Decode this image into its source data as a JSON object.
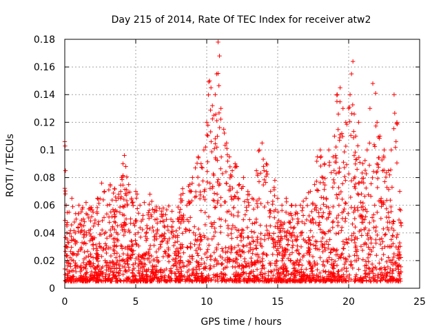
{
  "chart_data": {
    "type": "scatter",
    "title": "Day 215 of 2014, Rate Of TEC Index for receiver atw2",
    "xlabel": "GPS time / hours",
    "ylabel": "ROTI / TECUs",
    "xlim": [
      0,
      25
    ],
    "ylim": [
      0,
      0.18
    ],
    "xticks": [
      0,
      5,
      10,
      15,
      20,
      25
    ],
    "yticks": [
      0,
      0.02,
      0.04,
      0.06,
      0.08,
      0.1,
      0.12,
      0.14,
      0.16,
      0.18
    ],
    "ytick_labels": [
      "0",
      "0.02",
      "0.04",
      "0.06",
      "0.08",
      "0.1",
      "0.12",
      "0.14",
      "0.16",
      "0.18"
    ],
    "grid": true,
    "marker": "+",
    "color": "#ff0000",
    "series": [
      {
        "name": "ROTI",
        "x": [
          0.0,
          0.05,
          0.1,
          0.1,
          0.15,
          0.2,
          0.3,
          0.5,
          0.8,
          1.0,
          1.2,
          1.5,
          1.8,
          2.0,
          2.3,
          2.6,
          2.8,
          3.0,
          3.2,
          3.5,
          3.8,
          4.0,
          4.1,
          4.2,
          4.3,
          4.5,
          4.7,
          5.0,
          5.3,
          5.6,
          6.0,
          6.3,
          6.5,
          6.8,
          7.0,
          7.5,
          8.0,
          8.3,
          8.6,
          8.8,
          9.0,
          9.2,
          9.4,
          9.6,
          9.8,
          10.0,
          10.2,
          10.3,
          10.4,
          10.5,
          10.6,
          10.7,
          10.8,
          10.9,
          11.0,
          11.2,
          11.4,
          11.6,
          11.8,
          12.0,
          12.3,
          12.6,
          12.9,
          13.2,
          13.5,
          13.7,
          13.9,
          14.2,
          14.5,
          14.8,
          15.0,
          15.3,
          15.6,
          16.0,
          16.3,
          16.6,
          17.0,
          17.3,
          17.6,
          17.8,
          18.0,
          18.3,
          18.6,
          18.9,
          19.0,
          19.2,
          19.4,
          19.6,
          19.8,
          20.0,
          20.1,
          20.2,
          20.3,
          20.5,
          20.7,
          21.0,
          21.3,
          21.5,
          21.7,
          21.9,
          22.0,
          22.2,
          22.5,
          22.8,
          23.0,
          23.2,
          23.4,
          23.6
        ],
        "y": [
          0.106,
          0.085,
          0.03,
          0.06,
          0.045,
          0.02,
          0.055,
          0.065,
          0.05,
          0.06,
          0.045,
          0.062,
          0.058,
          0.055,
          0.065,
          0.076,
          0.07,
          0.06,
          0.075,
          0.072,
          0.068,
          0.08,
          0.09,
          0.096,
          0.088,
          0.075,
          0.065,
          0.07,
          0.06,
          0.062,
          0.068,
          0.055,
          0.05,
          0.052,
          0.045,
          0.04,
          0.05,
          0.072,
          0.06,
          0.075,
          0.08,
          0.087,
          0.095,
          0.09,
          0.1,
          0.12,
          0.15,
          0.145,
          0.132,
          0.125,
          0.14,
          0.155,
          0.178,
          0.168,
          0.13,
          0.115,
          0.105,
          0.095,
          0.085,
          0.09,
          0.075,
          0.08,
          0.07,
          0.065,
          0.085,
          0.1,
          0.105,
          0.09,
          0.07,
          0.078,
          0.065,
          0.06,
          0.065,
          0.06,
          0.055,
          0.06,
          0.065,
          0.07,
          0.075,
          0.095,
          0.1,
          0.09,
          0.1,
          0.095,
          0.11,
          0.14,
          0.145,
          0.13,
          0.12,
          0.13,
          0.14,
          0.155,
          0.164,
          0.11,
          0.12,
          0.09,
          0.1,
          0.13,
          0.148,
          0.141,
          0.12,
          0.11,
          0.1,
          0.085,
          0.1,
          0.14,
          0.12,
          0.07
        ],
        "baseline_band": [
          0.005,
          0.06
        ]
      }
    ]
  }
}
